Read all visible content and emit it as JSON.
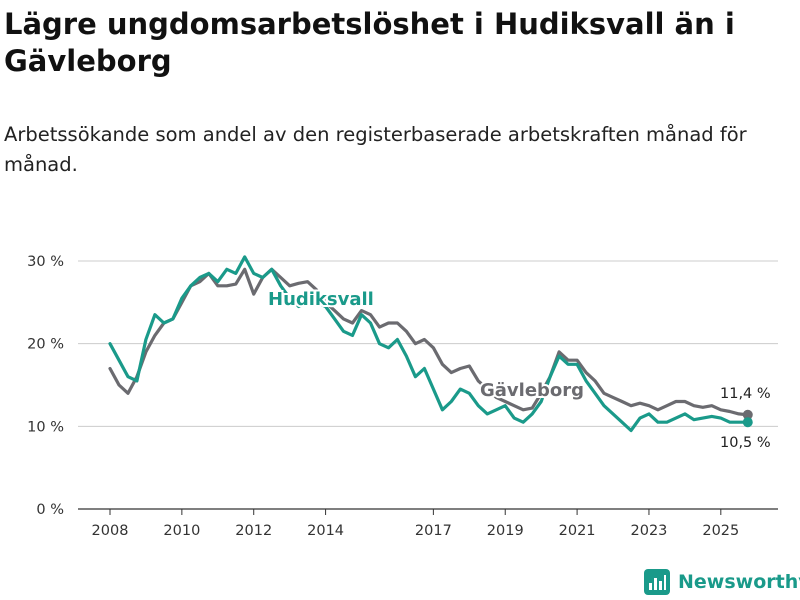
{
  "title": "Lägre ungdomsarbetslöshet i Hudiksvall än i Gävleborg",
  "subtitle": "Arbetssökande som andel av den registerbaserade arbetskraften månad för månad.",
  "brand": "Newsworthy",
  "colors": {
    "hudiksvall": "#1a9a8a",
    "gavleborg": "#6b6b70",
    "grid": "#cccccc",
    "axis": "#333333"
  },
  "chart_data": {
    "type": "line",
    "title": "Lägre ungdomsarbetslöshet i Hudiksvall än i Gävleborg",
    "xlabel": "",
    "ylabel": "",
    "ylim": [
      0,
      30
    ],
    "xlim": [
      2008,
      2026
    ],
    "x_ticks": [
      {
        "value": 2008,
        "label": "2008"
      },
      {
        "value": 2010,
        "label": "2010"
      },
      {
        "value": 2012,
        "label": "2012"
      },
      {
        "value": 2014,
        "label": "2014"
      },
      {
        "value": 2017,
        "label": "2017"
      },
      {
        "value": 2019,
        "label": "2019"
      },
      {
        "value": 2021,
        "label": "2021"
      },
      {
        "value": 2023,
        "label": "2023"
      },
      {
        "value": 2025,
        "label": "2025"
      }
    ],
    "y_ticks": [
      {
        "value": 0,
        "label": "0 %"
      },
      {
        "value": 10,
        "label": "10 %"
      },
      {
        "value": 20,
        "label": "20 %"
      },
      {
        "value": 30,
        "label": "30 %"
      }
    ],
    "series": [
      {
        "name": "Gävleborg",
        "key": "gavleborg",
        "label": "Gävleborg",
        "end_label": "11,4 %",
        "end_value": 11.4,
        "points": [
          [
            2008,
            17.0
          ],
          [
            2008.25,
            15.0
          ],
          [
            2008.5,
            14.0
          ],
          [
            2008.75,
            16.0
          ],
          [
            2009,
            19.0
          ],
          [
            2009.25,
            21.0
          ],
          [
            2009.5,
            22.5
          ],
          [
            2009.75,
            23.0
          ],
          [
            2010,
            25.0
          ],
          [
            2010.25,
            27.0
          ],
          [
            2010.5,
            27.5
          ],
          [
            2010.75,
            28.5
          ],
          [
            2011,
            27.0
          ],
          [
            2011.25,
            27.0
          ],
          [
            2011.5,
            27.2
          ],
          [
            2011.75,
            29.0
          ],
          [
            2012,
            26.0
          ],
          [
            2012.25,
            28.0
          ],
          [
            2012.5,
            29.0
          ],
          [
            2012.75,
            28.0
          ],
          [
            2013,
            27.0
          ],
          [
            2013.25,
            27.3
          ],
          [
            2013.5,
            27.5
          ],
          [
            2013.75,
            26.5
          ],
          [
            2014,
            25.0
          ],
          [
            2014.25,
            24.0
          ],
          [
            2014.5,
            23.0
          ],
          [
            2014.75,
            22.5
          ],
          [
            2015,
            24.0
          ],
          [
            2015.25,
            23.5
          ],
          [
            2015.5,
            22.0
          ],
          [
            2015.75,
            22.5
          ],
          [
            2016,
            22.5
          ],
          [
            2016.25,
            21.5
          ],
          [
            2016.5,
            20.0
          ],
          [
            2016.75,
            20.5
          ],
          [
            2017,
            19.5
          ],
          [
            2017.25,
            17.5
          ],
          [
            2017.5,
            16.5
          ],
          [
            2017.75,
            17.0
          ],
          [
            2018,
            17.3
          ],
          [
            2018.25,
            15.5
          ],
          [
            2018.5,
            14.5
          ],
          [
            2018.75,
            13.5
          ],
          [
            2019,
            13.0
          ],
          [
            2019.25,
            12.5
          ],
          [
            2019.5,
            12.0
          ],
          [
            2019.75,
            12.2
          ],
          [
            2020,
            14.0
          ],
          [
            2020.25,
            16.0
          ],
          [
            2020.5,
            19.0
          ],
          [
            2020.75,
            18.0
          ],
          [
            2021,
            18.0
          ],
          [
            2021.25,
            16.5
          ],
          [
            2021.5,
            15.5
          ],
          [
            2021.75,
            14.0
          ],
          [
            2022,
            13.5
          ],
          [
            2022.25,
            13.0
          ],
          [
            2022.5,
            12.5
          ],
          [
            2022.75,
            12.8
          ],
          [
            2023,
            12.5
          ],
          [
            2023.25,
            12.0
          ],
          [
            2023.5,
            12.5
          ],
          [
            2023.75,
            13.0
          ],
          [
            2024,
            13.0
          ],
          [
            2024.25,
            12.5
          ],
          [
            2024.5,
            12.3
          ],
          [
            2024.75,
            12.5
          ],
          [
            2025,
            12.0
          ],
          [
            2025.25,
            11.8
          ],
          [
            2025.5,
            11.5
          ],
          [
            2025.75,
            11.4
          ]
        ]
      },
      {
        "name": "Hudiksvall",
        "key": "hudiksvall",
        "label": "Hudiksvall",
        "end_label": "10,5 %",
        "end_value": 10.5,
        "points": [
          [
            2008,
            20.0
          ],
          [
            2008.25,
            18.0
          ],
          [
            2008.5,
            16.0
          ],
          [
            2008.75,
            15.5
          ],
          [
            2009,
            20.5
          ],
          [
            2009.25,
            23.5
          ],
          [
            2009.5,
            22.5
          ],
          [
            2009.75,
            23.0
          ],
          [
            2010,
            25.5
          ],
          [
            2010.25,
            27.0
          ],
          [
            2010.5,
            28.0
          ],
          [
            2010.75,
            28.5
          ],
          [
            2011,
            27.5
          ],
          [
            2011.25,
            29.0
          ],
          [
            2011.5,
            28.5
          ],
          [
            2011.75,
            30.5
          ],
          [
            2012,
            28.5
          ],
          [
            2012.25,
            28.0
          ],
          [
            2012.5,
            29.0
          ],
          [
            2012.75,
            27.0
          ],
          [
            2013,
            25.5
          ],
          [
            2013.25,
            24.5
          ],
          [
            2013.5,
            25.0
          ],
          [
            2013.75,
            25.0
          ],
          [
            2014,
            24.5
          ],
          [
            2014.25,
            23.0
          ],
          [
            2014.5,
            21.5
          ],
          [
            2014.75,
            21.0
          ],
          [
            2015,
            23.5
          ],
          [
            2015.25,
            22.5
          ],
          [
            2015.5,
            20.0
          ],
          [
            2015.75,
            19.5
          ],
          [
            2016,
            20.5
          ],
          [
            2016.25,
            18.5
          ],
          [
            2016.5,
            16.0
          ],
          [
            2016.75,
            17.0
          ],
          [
            2017,
            14.5
          ],
          [
            2017.25,
            12.0
          ],
          [
            2017.5,
            13.0
          ],
          [
            2017.75,
            14.5
          ],
          [
            2018,
            14.0
          ],
          [
            2018.25,
            12.5
          ],
          [
            2018.5,
            11.5
          ],
          [
            2018.75,
            12.0
          ],
          [
            2019,
            12.5
          ],
          [
            2019.25,
            11.0
          ],
          [
            2019.5,
            10.5
          ],
          [
            2019.75,
            11.5
          ],
          [
            2020,
            13.0
          ],
          [
            2020.25,
            16.0
          ],
          [
            2020.5,
            18.5
          ],
          [
            2020.75,
            17.5
          ],
          [
            2021,
            17.5
          ],
          [
            2021.25,
            15.5
          ],
          [
            2021.5,
            14.0
          ],
          [
            2021.75,
            12.5
          ],
          [
            2022,
            11.5
          ],
          [
            2022.25,
            10.5
          ],
          [
            2022.5,
            9.5
          ],
          [
            2022.75,
            11.0
          ],
          [
            2023,
            11.5
          ],
          [
            2023.25,
            10.5
          ],
          [
            2023.5,
            10.5
          ],
          [
            2023.75,
            11.0
          ],
          [
            2024,
            11.5
          ],
          [
            2024.25,
            10.8
          ],
          [
            2024.5,
            11.0
          ],
          [
            2024.75,
            11.2
          ],
          [
            2025,
            11.0
          ],
          [
            2025.25,
            10.5
          ],
          [
            2025.5,
            10.5
          ],
          [
            2025.75,
            10.5
          ]
        ]
      }
    ]
  }
}
